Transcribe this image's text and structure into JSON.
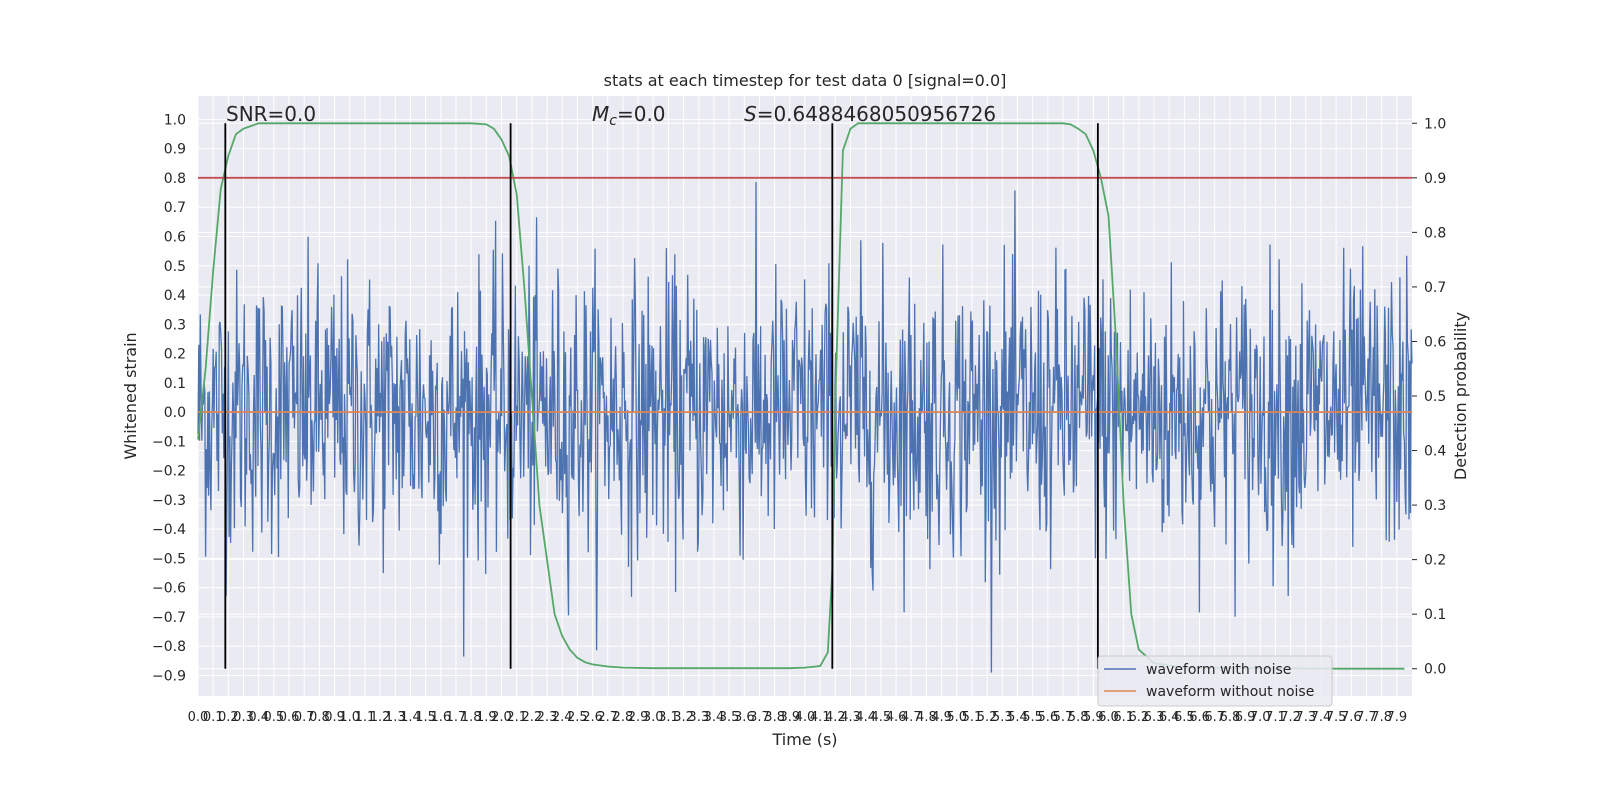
{
  "chart_data": {
    "type": "line",
    "title": "stats at each timestep for test data 0 [signal=0.0]",
    "xlabel": "Time (s)",
    "ylabel_left": "Whitened strain",
    "ylabel_right": "Detection probability",
    "xlim": [
      0,
      8
    ],
    "ylim_left": [
      -0.97,
      1.08
    ],
    "ylim_right": [
      -0.05,
      1.05
    ],
    "left_yticks": [
      -0.9,
      -0.8,
      -0.7,
      -0.6,
      -0.5,
      -0.4,
      -0.3,
      -0.2,
      -0.1,
      0.0,
      0.1,
      0.2,
      0.3,
      0.4,
      0.5,
      0.6,
      0.7,
      0.8,
      0.9,
      1.0
    ],
    "left_ytick_labels": [
      "−0.9",
      "−0.8",
      "−0.7",
      "−0.6",
      "−0.5",
      "−0.4",
      "−0.3",
      "−0.2",
      "−0.1",
      "0.0",
      "0.1",
      "0.2",
      "0.3",
      "0.4",
      "0.5",
      "0.6",
      "0.7",
      "0.8",
      "0.9",
      "1.0"
    ],
    "right_yticks": [
      0.0,
      0.1,
      0.2,
      0.3,
      0.4,
      0.5,
      0.6,
      0.7,
      0.8,
      0.9,
      1.0
    ],
    "right_ytick_labels": [
      "0.0",
      "0.1",
      "0.2",
      "0.3",
      "0.4",
      "0.5",
      "0.6",
      "0.7",
      "0.8",
      "0.9",
      "1.0"
    ],
    "xtick_step": 0.1,
    "grid": true,
    "annotations": {
      "snr": "SNR=0.0",
      "mc_symbol": "M",
      "mc_subscript": "c",
      "mc_value": "=0.0",
      "s_symbol": "S",
      "s_value": "=0.6488468050956726"
    },
    "legend": {
      "placement": "lower-right",
      "entries": [
        "waveform with noise",
        "waveform without noise"
      ]
    },
    "series": [
      {
        "name": "waveform with noise",
        "color": "#4c72b0",
        "axis": "left",
        "kind": "noise",
        "n_samples": 1600,
        "approx_std": 0.24
      },
      {
        "name": "waveform without noise",
        "color": "#dd8452",
        "axis": "left",
        "x": [
          0,
          8
        ],
        "y": [
          0.0,
          0.0
        ]
      },
      {
        "color": "#55a868",
        "axis": "right",
        "x": [
          0.0,
          0.05,
          0.1,
          0.15,
          0.2,
          0.25,
          0.3,
          0.35,
          0.4,
          0.45,
          0.5,
          0.6,
          0.8,
          1.0,
          1.2,
          1.4,
          1.6,
          1.8,
          1.9,
          1.95,
          2.0,
          2.05,
          2.1,
          2.15,
          2.2,
          2.25,
          2.3,
          2.35,
          2.4,
          2.45,
          2.5,
          2.55,
          2.6,
          2.7,
          2.8,
          3.0,
          3.3,
          3.6,
          3.9,
          4.0,
          4.1,
          4.15,
          4.18,
          4.2,
          4.25,
          4.3,
          4.35,
          4.4,
          4.5,
          4.7,
          5.0,
          5.3,
          5.6,
          5.7,
          5.75,
          5.8,
          5.85,
          5.9,
          5.95,
          6.0,
          6.05,
          6.1,
          6.15,
          6.2,
          6.3,
          6.5,
          7.0,
          7.5,
          7.95
        ],
        "y": [
          0.42,
          0.55,
          0.73,
          0.88,
          0.94,
          0.98,
          0.99,
          0.995,
          1.0,
          1.0,
          1.0,
          1.0,
          1.0,
          1.0,
          1.0,
          1.0,
          1.0,
          1.0,
          0.998,
          0.99,
          0.97,
          0.94,
          0.87,
          0.7,
          0.5,
          0.3,
          0.2,
          0.1,
          0.06,
          0.035,
          0.02,
          0.012,
          0.008,
          0.004,
          0.002,
          0.001,
          0.001,
          0.001,
          0.001,
          0.002,
          0.005,
          0.03,
          0.18,
          0.5,
          0.95,
          0.99,
          1.0,
          1.0,
          1.0,
          1.0,
          1.0,
          1.0,
          1.0,
          1.0,
          0.998,
          0.99,
          0.98,
          0.95,
          0.9,
          0.83,
          0.6,
          0.3,
          0.1,
          0.035,
          0.01,
          0.002,
          0.001,
          0.0,
          0.0
        ]
      },
      {
        "color": "#c44e52",
        "axis": "right",
        "x": [
          0,
          8
        ],
        "y": [
          0.9,
          0.9
        ]
      }
    ],
    "vertical_lines": [
      0.18,
      2.06,
      4.18,
      5.93
    ],
    "vertical_line_color": "#000000"
  }
}
